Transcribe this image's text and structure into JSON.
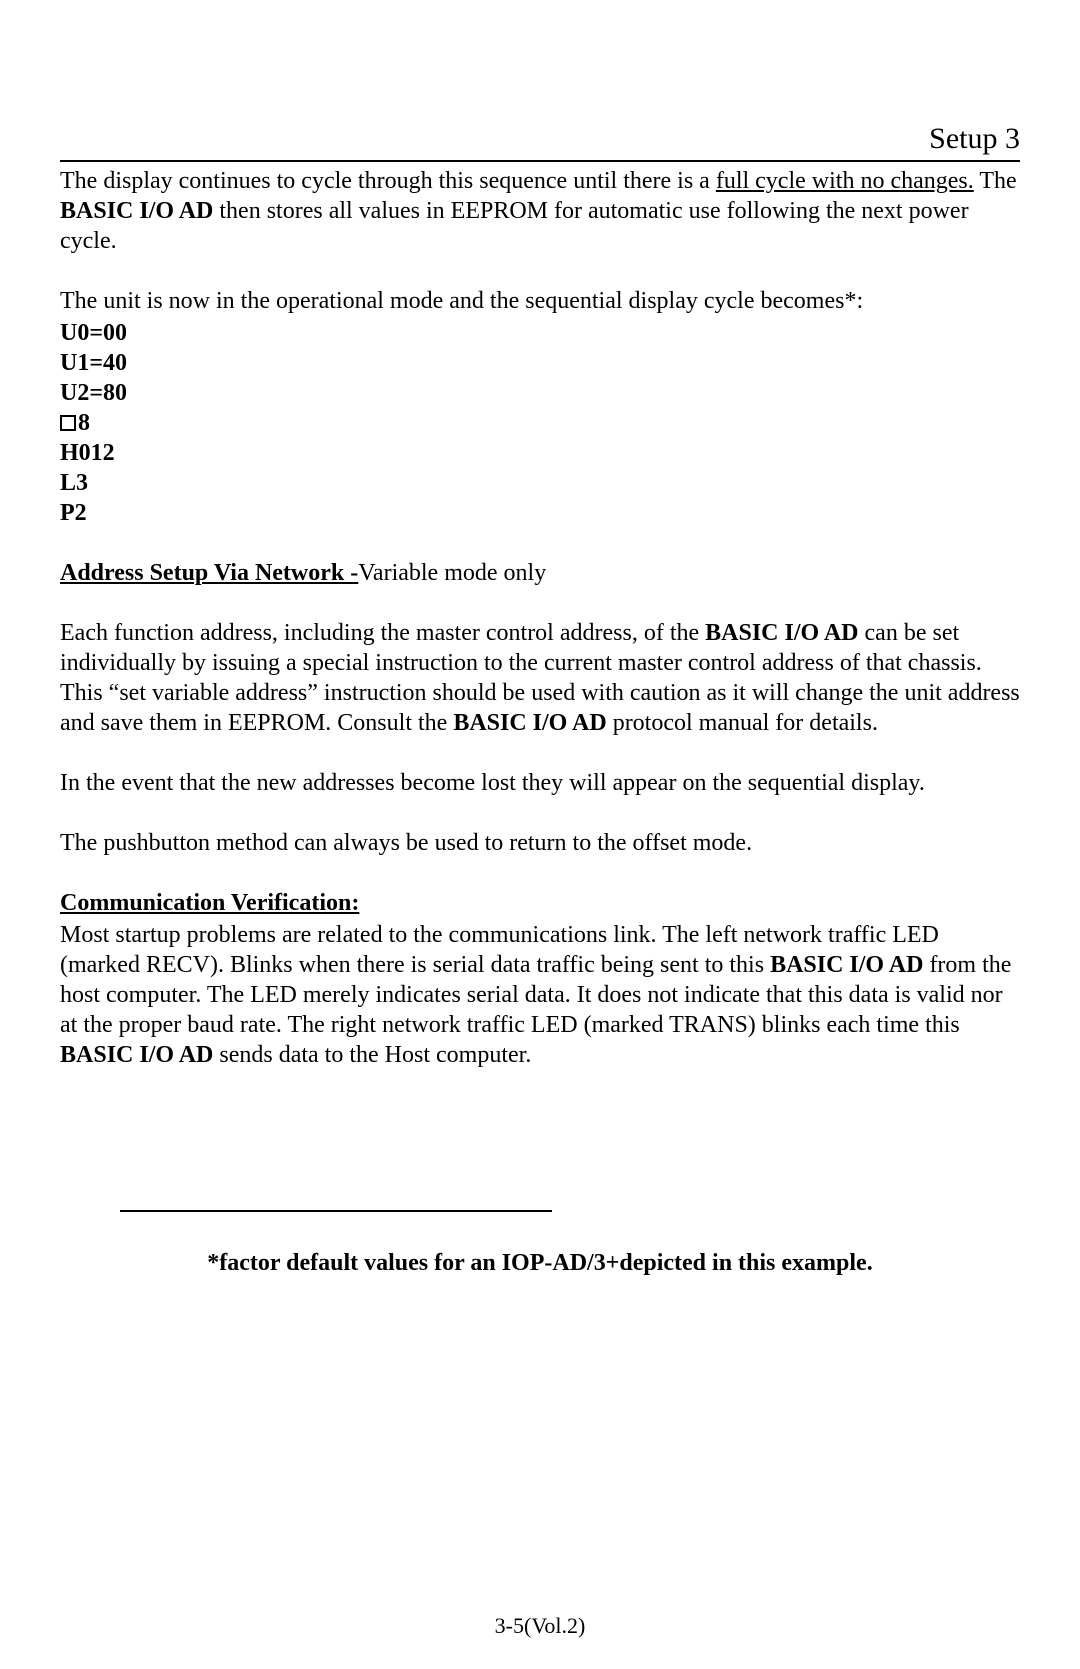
{
  "header": {
    "title": "Setup 3"
  },
  "intro": {
    "pre": "The display continues to cycle through this sequence until there is a ",
    "underlined": "full cycle with no changes.",
    "mid": " The ",
    "bold": "BASIC I/O AD",
    "post": " then stores all values in EEPROM for automatic use following the next power cycle."
  },
  "operational_line": "The unit is now in the operational mode and the sequential display cycle becomes*:",
  "sequence": {
    "u0": "U0=00",
    "u1": "U1=40",
    "u2": "U2=80",
    "sq": "8",
    "h": "H012",
    "l": "L3",
    "p": "P2"
  },
  "address_setup": {
    "heading": "Address Setup Via Network -",
    "suffix": "Variable mode only",
    "p1_pre": "Each function address, including the master control address, of the ",
    "p1_bold1": "BASIC I/O AD",
    "p1_mid": " can be set individually by issuing a special instruction to the current master control address of that chassis. This “set variable address” instruction should be used with caution as it will change the unit address and save them in EEPROM. Consult the ",
    "p1_bold2": "BASIC I/O AD",
    "p1_post": " protocol manual for details.",
    "p2": "In the event that the new addresses become lost they will appear on the sequential display.",
    "p3": "The pushbutton method can always be used to return to the offset mode."
  },
  "comm": {
    "heading": "Communication Verification:",
    "pre": "Most startup problems are related to the communications link. The left network traffic LED (marked RECV). Blinks when there is serial data traffic being sent to this ",
    "bold1": "BASIC I/O AD",
    "mid": " from the host computer. The LED merely indicates serial data. It does not indicate that this data is valid nor at the proper baud rate. The right network traffic LED (marked TRANS) blinks each time this ",
    "bold2": "BASIC I/O AD",
    "post": " sends data to the Host computer."
  },
  "footnote": "*factor default values for an IOP-AD/3+depicted in this example.",
  "page_number": "3-5(Vol.2)"
}
